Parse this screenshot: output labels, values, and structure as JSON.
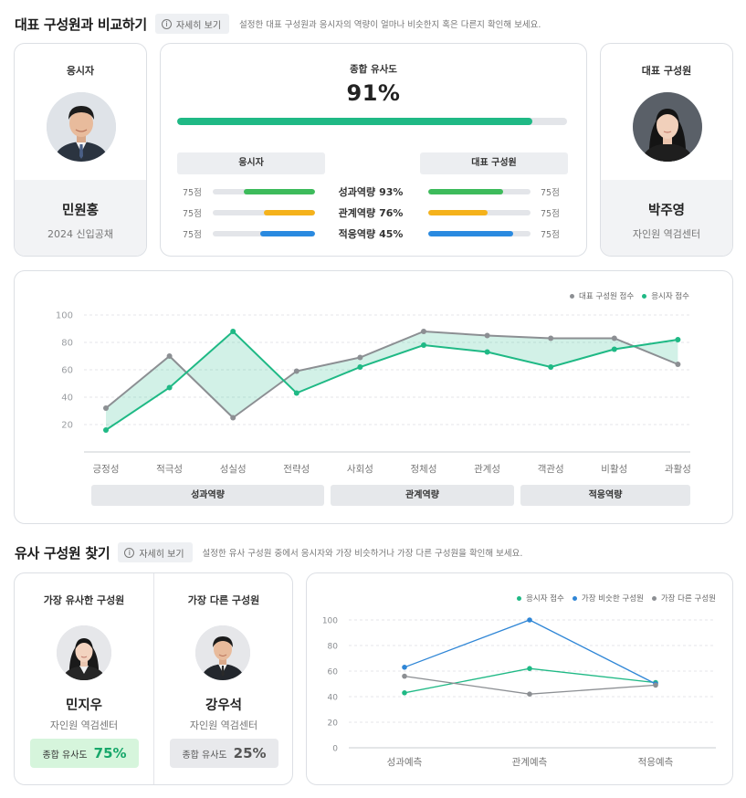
{
  "section1": {
    "title": "대표 구성원과 비교하기",
    "info_button": "자세히 보기",
    "description": "설정한 대표 구성원과 응시자의 역량이 얼마나 비슷한지 혹은 다른지 확인해 보세요."
  },
  "applicant": {
    "label": "응시자",
    "name": "민원홍",
    "sub": "2024 신입공채"
  },
  "representative": {
    "label": "대표 구성원",
    "name": "박주영",
    "sub": "자인원 역검센터"
  },
  "overall": {
    "label": "종합 유사도",
    "value": "91%",
    "fraction": 0.91
  },
  "comparison": {
    "left_header": "응시자",
    "right_header": "대표 구성원",
    "rows": [
      {
        "name": "성과역량",
        "pct": "93%",
        "left_score": "75점",
        "right_score": "75점",
        "color": "#3dbb5b",
        "left_fill": [
          0.3,
          1.0
        ],
        "right_fill": [
          0.0,
          0.73
        ]
      },
      {
        "name": "관계역량",
        "pct": "76%",
        "left_score": "75점",
        "right_score": "75점",
        "color": "#f5b21b",
        "left_fill": [
          0.5,
          1.0
        ],
        "right_fill": [
          0.0,
          0.58
        ]
      },
      {
        "name": "적응역량",
        "pct": "45%",
        "left_score": "75점",
        "right_score": "75점",
        "color": "#2a8ae0",
        "left_fill": [
          0.46,
          1.0
        ],
        "right_fill": [
          0.0,
          0.83
        ]
      }
    ]
  },
  "colors": {
    "accent_green": "#1fb985",
    "gray": "#8c8f93",
    "blue": "#2f86d6"
  },
  "chart_data": [
    {
      "type": "line",
      "categories": [
        "긍정성",
        "적극성",
        "성실성",
        "전략성",
        "사회성",
        "정체성",
        "관계성",
        "객관성",
        "비활성",
        "과활성"
      ],
      "ylim": [
        0,
        100
      ],
      "yticks": [
        100,
        80,
        60,
        40,
        20
      ],
      "grid": true,
      "legend_position": "top-right",
      "series": [
        {
          "name": "대표 구성원 점수",
          "color": "#8c8f93",
          "values": [
            32,
            70,
            25,
            59,
            69,
            88,
            85,
            83,
            83,
            64
          ]
        },
        {
          "name": "응시자 점수",
          "color": "#1fb985",
          "values": [
            16,
            47,
            88,
            43,
            62,
            78,
            73,
            62,
            75,
            82
          ]
        }
      ],
      "groups": [
        {
          "label": "성과역량"
        },
        {
          "label": "관계역량"
        },
        {
          "label": "적응역량"
        }
      ]
    },
    {
      "type": "line",
      "categories": [
        "성과예측",
        "관계예측",
        "적응예측"
      ],
      "ylim": [
        0,
        100
      ],
      "yticks": [
        100,
        80,
        60,
        40,
        20,
        0
      ],
      "grid": true,
      "legend_position": "top-right",
      "series": [
        {
          "name": "응시자 점수",
          "color": "#1fb985",
          "values": [
            43,
            62,
            51
          ]
        },
        {
          "name": "가장 비슷한 구성원",
          "color": "#2f86d6",
          "values": [
            63,
            100,
            50
          ]
        },
        {
          "name": "가장 다른 구성원",
          "color": "#8c8f93",
          "values": [
            56,
            42,
            49
          ]
        }
      ]
    }
  ],
  "section2": {
    "title": "유사 구성원 찾기",
    "info_button": "자세히 보기",
    "description": "설정한 유사 구성원 중에서 응시자와 가장 비슷하거나 가장 다른 구성원을 확인해 보세요."
  },
  "similar": {
    "title": "가장 유사한 구성원",
    "name": "민지우",
    "sub": "자인원 역검센터",
    "badge_label": "종합 유사도",
    "badge_value": "75%"
  },
  "different": {
    "title": "가장 다른 구성원",
    "name": "강우석",
    "sub": "자인원 역검센터",
    "badge_label": "종합 유사도",
    "badge_value": "25%"
  }
}
